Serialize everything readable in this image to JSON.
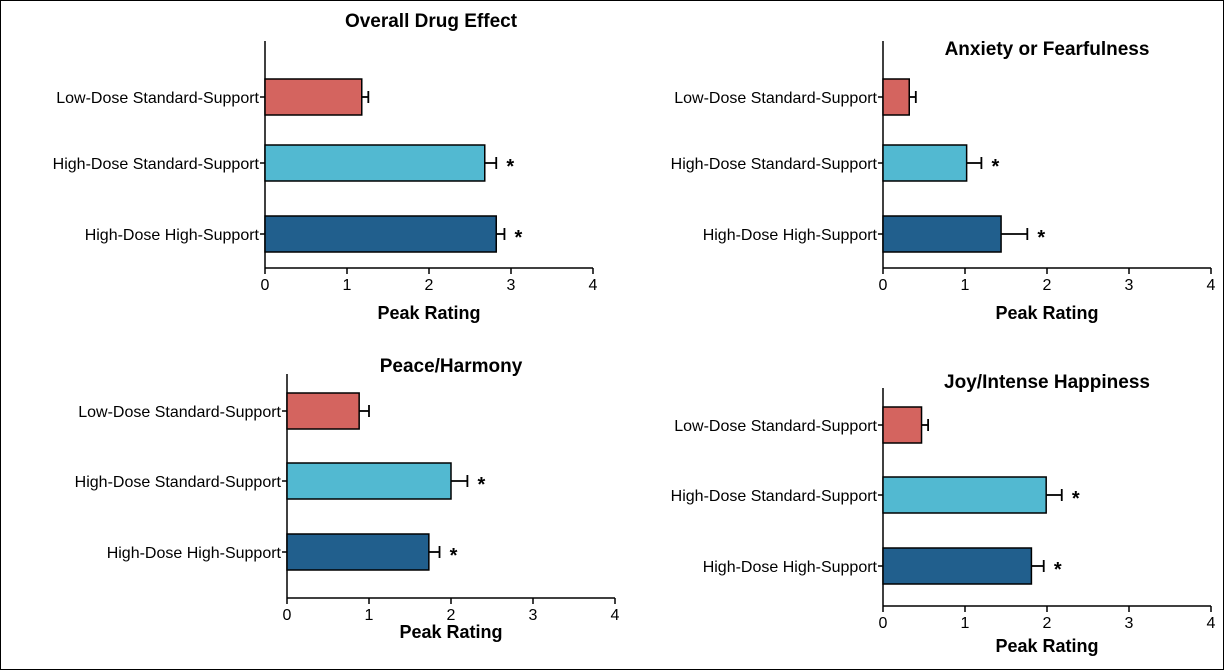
{
  "colors": {
    "low_dose_standard": "#d4645f",
    "high_dose_standard": "#52b9d1",
    "high_dose_high": "#215f8d"
  },
  "chart_data": [
    {
      "type": "bar",
      "orientation": "horizontal",
      "title": "Overall Drug Effect",
      "categories": [
        "Low-Dose Standard-Support",
        "High-Dose Standard-Support",
        "High-Dose High-Support"
      ],
      "values": [
        1.18,
        2.68,
        2.82
      ],
      "errors": [
        0.08,
        0.14,
        0.1
      ],
      "significance": [
        "",
        "*",
        "*"
      ],
      "xlabel": "Peak Rating",
      "xlim": [
        0,
        4
      ],
      "xticks": [
        "0",
        "1",
        "2",
        "3",
        "4"
      ],
      "grid": false
    },
    {
      "type": "bar",
      "orientation": "horizontal",
      "title": "Anxiety or Fearfulness",
      "categories": [
        "Low-Dose Standard-Support",
        "High-Dose Standard-Support",
        "High-Dose High-Support"
      ],
      "values": [
        0.32,
        1.02,
        1.44
      ],
      "errors": [
        0.08,
        0.18,
        0.32
      ],
      "significance": [
        "",
        "*",
        "*"
      ],
      "xlabel": "Peak Rating",
      "xlim": [
        0,
        4
      ],
      "xticks": [
        "0",
        "1",
        "2",
        "3",
        "4"
      ],
      "grid": false
    },
    {
      "type": "bar",
      "orientation": "horizontal",
      "title": "Peace/Harmony",
      "categories": [
        "Low-Dose Standard-Support",
        "High-Dose Standard-Support",
        "High-Dose High-Support"
      ],
      "values": [
        0.88,
        2.0,
        1.73
      ],
      "errors": [
        0.12,
        0.2,
        0.13
      ],
      "significance": [
        "",
        "*",
        "*"
      ],
      "xlabel": "Peak Rating",
      "xlim": [
        0,
        4
      ],
      "xticks": [
        "0",
        "1",
        "2",
        "3",
        "4"
      ],
      "grid": false
    },
    {
      "type": "bar",
      "orientation": "horizontal",
      "title": "Joy/Intense Happiness",
      "categories": [
        "Low-Dose Standard-Support",
        "High-Dose Standard-Support",
        "High-Dose High-Support"
      ],
      "values": [
        0.47,
        1.99,
        1.81
      ],
      "errors": [
        0.08,
        0.19,
        0.15
      ],
      "significance": [
        "",
        "*",
        "*"
      ],
      "xlabel": "Peak Rating",
      "xlim": [
        0,
        4
      ],
      "xticks": [
        "0",
        "1",
        "2",
        "3",
        "4"
      ],
      "grid": false
    }
  ]
}
